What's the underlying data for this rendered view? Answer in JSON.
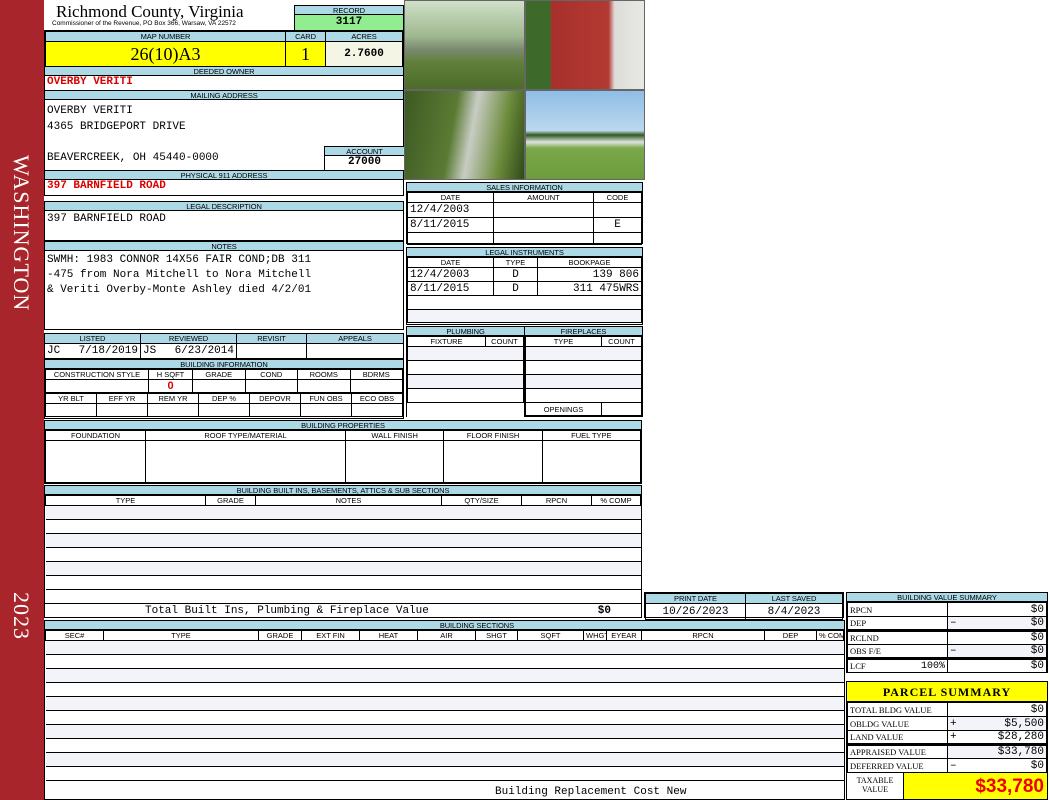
{
  "sidebar": {
    "district": "WASHINGTON",
    "year": "2023",
    "color": "#a8262b"
  },
  "header": {
    "title": "Richmond County, Virginia",
    "subtitle": "Commissioner of the Revenue, PO Box 366, Warsaw, VA 22572",
    "record_label": "RECORD",
    "record": "3117"
  },
  "parcel": {
    "map_label": "MAP NUMBER",
    "map_number": "26(10)A3",
    "card_label": "CARD",
    "card": "1",
    "acres_label": "ACRES",
    "acres": "2.7600"
  },
  "owner": {
    "label": "DEEDED OWNER",
    "name": "OVERBY VERITI"
  },
  "mailing": {
    "label": "MAILING ADDRESS",
    "line1": "OVERBY VERITI",
    "line2": "4365 BRIDGEPORT DRIVE",
    "line3": "BEAVERCREEK, OH 45440-0000",
    "account_label": "ACCOUNT",
    "account": "27000"
  },
  "physical": {
    "label": "PHYSICAL 911 ADDRESS",
    "address": "397 BARNFIELD ROAD"
  },
  "legal": {
    "label": "LEGAL DESCRIPTION",
    "text": "397 BARNFIELD ROAD"
  },
  "notes": {
    "label": "NOTES",
    "line1": "SWMH: 1983 CONNOR 14X56 FAIR COND;DB 311",
    "line2": "-475 from Nora Mitchell to Nora Mitchell",
    "line3": "& Veriti Overby-Monte Ashley died 4/2/01"
  },
  "review": {
    "listed_label": "LISTED",
    "reviewed_label": "REVIEWED",
    "revisit_label": "REVISIT",
    "appeals_label": "APPEALS",
    "listed_by": "JC",
    "listed_date": "7/18/2019",
    "reviewed_by": "JS",
    "reviewed_date": "6/23/2014"
  },
  "building_info": {
    "label": "BUILDING INFORMATION",
    "cols1": [
      "CONSTRUCTION STYLE",
      "H SQFT",
      "GRADE",
      "COND",
      "ROOMS",
      "BDRMS"
    ],
    "hsqft": "0",
    "cols2": [
      "YR BLT",
      "EFF YR",
      "REM YR",
      "DEP %",
      "DEPOVR",
      "FUN OBS",
      "ECO OBS"
    ]
  },
  "sales": {
    "label": "SALES INFORMATION",
    "cols": [
      "DATE",
      "AMOUNT",
      "CODE"
    ],
    "rows": [
      [
        "12/4/2003",
        "",
        ""
      ],
      [
        "8/11/2015",
        "",
        "E"
      ]
    ]
  },
  "instruments": {
    "label": "LEGAL INSTRUMENTS",
    "cols": [
      "DATE",
      "TYPE",
      "BOOKPAGE"
    ],
    "rows": [
      [
        "12/4/2003",
        "D",
        "139 806"
      ],
      [
        "8/11/2015",
        "D",
        "311 475WRS"
      ]
    ]
  },
  "plumbing": {
    "label": "PLUMBING",
    "cols": [
      "FIXTURE",
      "COUNT"
    ]
  },
  "fireplaces": {
    "label": "FIREPLACES",
    "cols": [
      "TYPE",
      "COUNT"
    ],
    "openings": "OPENINGS"
  },
  "properties": {
    "label": "BUILDING PROPERTIES",
    "cols": [
      "FOUNDATION",
      "ROOF TYPE/MATERIAL",
      "WALL FINISH",
      "FLOOR FINISH",
      "FUEL TYPE"
    ]
  },
  "builtins": {
    "label": "BUILDING BUILT INS, BASEMENTS, ATTICS & SUB SECTIONS",
    "cols": [
      "TYPE",
      "GRADE",
      "NOTES",
      "QTY/SIZE",
      "RPCN",
      "% COMP"
    ],
    "total_label": "Total Built Ins, Plumbing & Fireplace Value",
    "total": "$0"
  },
  "dates": {
    "print_label": "PRINT DATE",
    "print_date": "10/26/2023",
    "saved_label": "LAST SAVED",
    "saved_date": "8/4/2023"
  },
  "sections": {
    "label": "BUILDING SECTIONS",
    "cols": [
      "SEC#",
      "TYPE",
      "GRADE",
      "EXT FIN",
      "HEAT",
      "AIR",
      "SHGT",
      "SQFT",
      "WHGT",
      "EYEAR",
      "RPCN",
      "DEP",
      "% COMP"
    ],
    "footer": "Building Replacement Cost New"
  },
  "value_summary": {
    "label": "BUILDING VALUE SUMMARY",
    "rows": [
      {
        "name": "RPCN",
        "sign": "",
        "value": "$0"
      },
      {
        "name": "DEP",
        "sign": "–",
        "value": "$0"
      },
      {
        "name": "RCLND",
        "sign": "",
        "value": "$0"
      },
      {
        "name": "OBS F/E",
        "sign": "–",
        "value": "$0"
      },
      {
        "name": "LCF",
        "pct": "100%",
        "sign": "",
        "value": "$0"
      }
    ]
  },
  "parcel_summary": {
    "label": "PARCEL SUMMARY",
    "rows": [
      {
        "name": "TOTAL BLDG VALUE",
        "sign": "",
        "value": "$0"
      },
      {
        "name": "OBLDG VALUE",
        "sign": "+",
        "value": "$5,500"
      },
      {
        "name": "LAND VALUE",
        "sign": "+",
        "value": "$28,280"
      },
      {
        "name": "APPRAISED VALUE",
        "sign": "",
        "value": "$33,780"
      },
      {
        "name": "DEFERRED VALUE",
        "sign": "–",
        "value": "$0"
      }
    ],
    "taxable_label": "TAXABLE VALUE",
    "taxable": "$33,780"
  }
}
